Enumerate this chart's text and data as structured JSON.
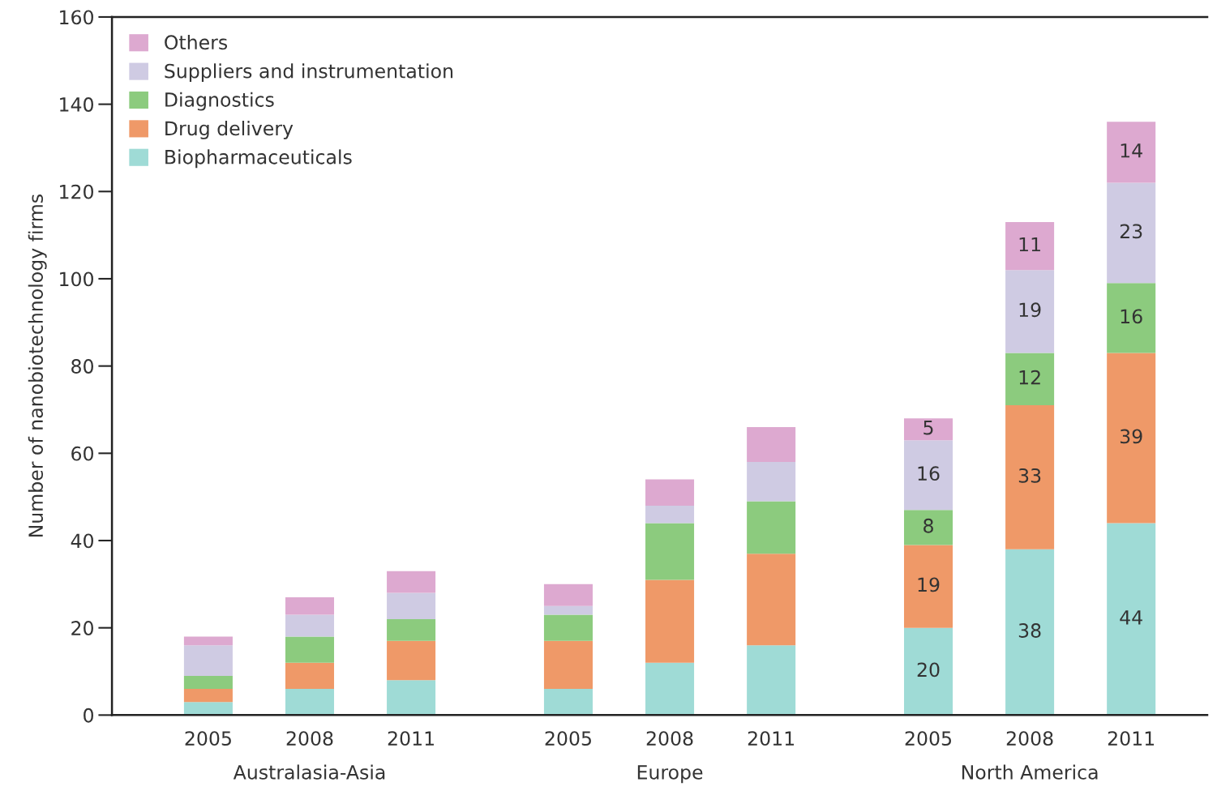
{
  "chart_data": {
    "type": "bar",
    "stacked": true,
    "ylabel": "Number of nanobiotechnology firms",
    "categories": [
      "2005",
      "2008",
      "2011",
      "2005",
      "2008",
      "2011",
      "2005",
      "2008",
      "2011"
    ],
    "series": [
      {
        "name": "Biopharmaceuticals",
        "color": "#9fdbd6",
        "values": [
          3,
          6,
          8,
          6,
          12,
          16,
          20,
          38,
          44
        ],
        "value_labels": [
          null,
          null,
          null,
          null,
          null,
          null,
          "20",
          "38",
          "44"
        ]
      },
      {
        "name": "Drug delivery",
        "color": "#ef9968",
        "values": [
          3,
          6,
          9,
          11,
          19,
          21,
          19,
          33,
          39
        ],
        "value_labels": [
          null,
          null,
          null,
          null,
          null,
          null,
          "19",
          "33",
          "39"
        ]
      },
      {
        "name": "Diagnostics",
        "color": "#8ccb7e",
        "values": [
          3,
          6,
          5,
          6,
          13,
          12,
          8,
          12,
          16
        ],
        "value_labels": [
          null,
          null,
          null,
          null,
          null,
          null,
          "8",
          "12",
          "16"
        ]
      },
      {
        "name": "Suppliers and instrumentation",
        "color": "#cfcbe3",
        "values": [
          7,
          5,
          6,
          2,
          4,
          9,
          16,
          19,
          23
        ],
        "value_labels": [
          null,
          null,
          null,
          null,
          null,
          null,
          "16",
          "19",
          "23"
        ]
      },
      {
        "name": "Others",
        "color": "#dda9d0",
        "values": [
          2,
          4,
          5,
          5,
          6,
          8,
          5,
          11,
          14
        ],
        "value_labels": [
          null,
          null,
          null,
          null,
          null,
          null,
          "5",
          "11",
          "14"
        ]
      }
    ],
    "annotations": [
      "Australasia-Asia",
      "Europe",
      "North America"
    ],
    "ylim": [
      0,
      160
    ],
    "yticks": [
      0,
      20,
      40,
      60,
      80,
      100,
      120,
      140,
      160
    ],
    "grid": false,
    "legend": "top left"
  }
}
